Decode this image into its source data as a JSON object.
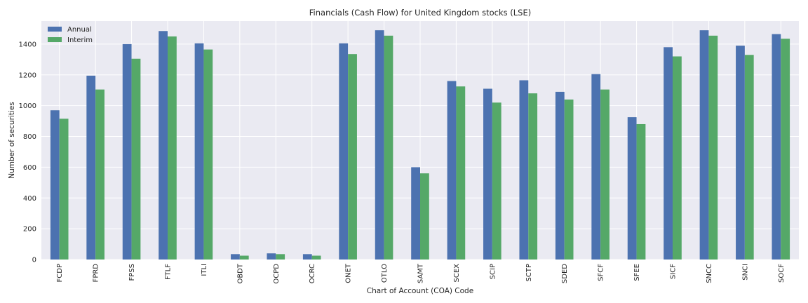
{
  "chart_data": {
    "type": "bar",
    "title": "Financials (Cash Flow) for United Kingdom stocks (LSE)",
    "xlabel": "Chart of Account (COA) Code",
    "ylabel": "Number of securities",
    "ylim": [
      0,
      1550
    ],
    "yticks": [
      0,
      200,
      400,
      600,
      800,
      1000,
      1200,
      1400
    ],
    "grid": true,
    "legend_position": "top-left",
    "background": "#eaeaf2",
    "categories": [
      "FCDP",
      "FPRD",
      "FPSS",
      "FTLF",
      "ITLI",
      "OBDT",
      "OCPD",
      "OCRC",
      "ONET",
      "OTLO",
      "SAMT",
      "SCEX",
      "SCIP",
      "SCTP",
      "SDED",
      "SFCF",
      "SFEE",
      "SICF",
      "SNCC",
      "SNCI",
      "SOCF"
    ],
    "series": [
      {
        "name": "Annual",
        "color": "#4c72b0",
        "values": [
          970,
          1195,
          1400,
          1485,
          1405,
          35,
          40,
          35,
          1405,
          1490,
          600,
          1160,
          1110,
          1165,
          1090,
          1205,
          925,
          1380,
          1490,
          1390,
          1465
        ]
      },
      {
        "name": "Interim",
        "color": "#55a868",
        "values": [
          915,
          1105,
          1305,
          1450,
          1365,
          25,
          35,
          25,
          1335,
          1455,
          560,
          1125,
          1020,
          1080,
          1040,
          1105,
          880,
          1320,
          1455,
          1330,
          1435
        ]
      }
    ]
  }
}
